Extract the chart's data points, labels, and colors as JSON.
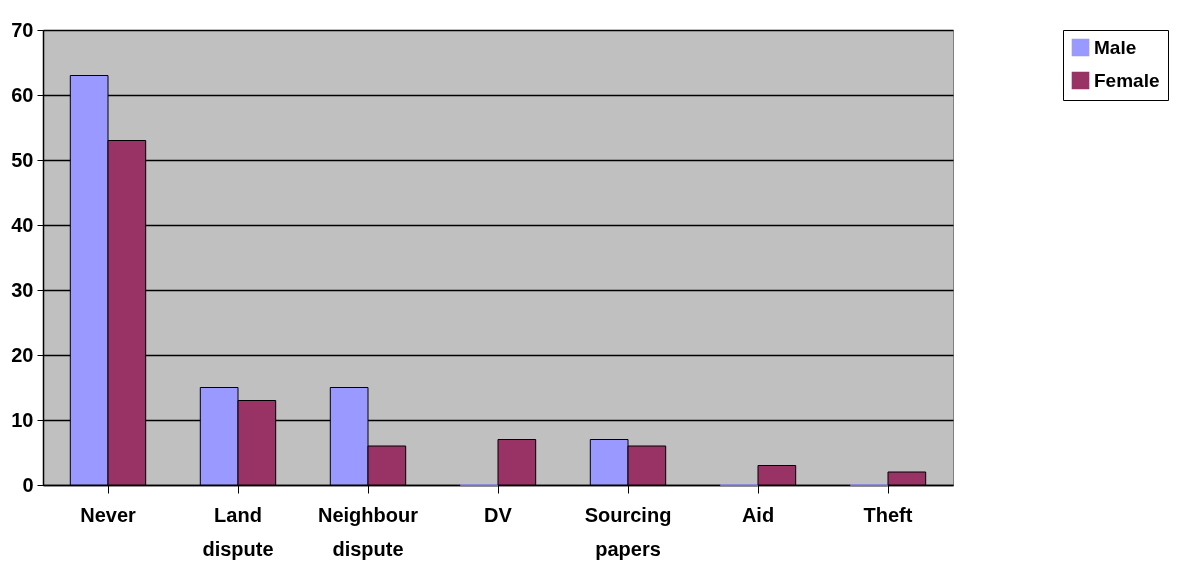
{
  "chart_data": {
    "type": "bar",
    "categories": [
      "Never",
      "Land dispute",
      "Neighbour dispute",
      "DV",
      "Sourcing papers",
      "Aid",
      "Theft"
    ],
    "series": [
      {
        "name": "Male",
        "color": "#9999ff",
        "values": [
          63,
          15,
          15,
          0,
          7,
          0,
          0
        ]
      },
      {
        "name": "Female",
        "color": "#993366",
        "values": [
          53,
          13,
          6,
          7,
          6,
          3,
          2
        ]
      }
    ],
    "ylim": [
      0,
      70
    ],
    "yticks": [
      0,
      10,
      20,
      30,
      40,
      50,
      60,
      70
    ],
    "grid": "y",
    "legend": "right"
  }
}
